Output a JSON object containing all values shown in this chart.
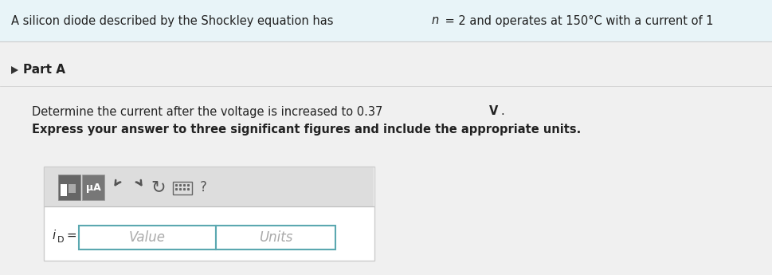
{
  "header_bg": "#e8f4f8",
  "body_bg": "#f0f0f0",
  "part_label": "Part A",
  "question_line1_pre": "Determine the current after the voltage is increased to 0.37 ",
  "question_line1_V": "V",
  "question_line1_post": ".",
  "question_line2": "Express your answer to three significant figures and include the appropriate units.",
  "value_placeholder": "Value",
  "units_placeholder": "Units",
  "toolbar_label": "μA",
  "input_border": "#5ba8b0",
  "outer_box_border": "#cccccc",
  "toolbar_area_bg": "#dddddd",
  "separator_color": "#cccccc",
  "question_fontsize": 10.5,
  "part_fontsize": 11,
  "header_fontsize": 10.5
}
